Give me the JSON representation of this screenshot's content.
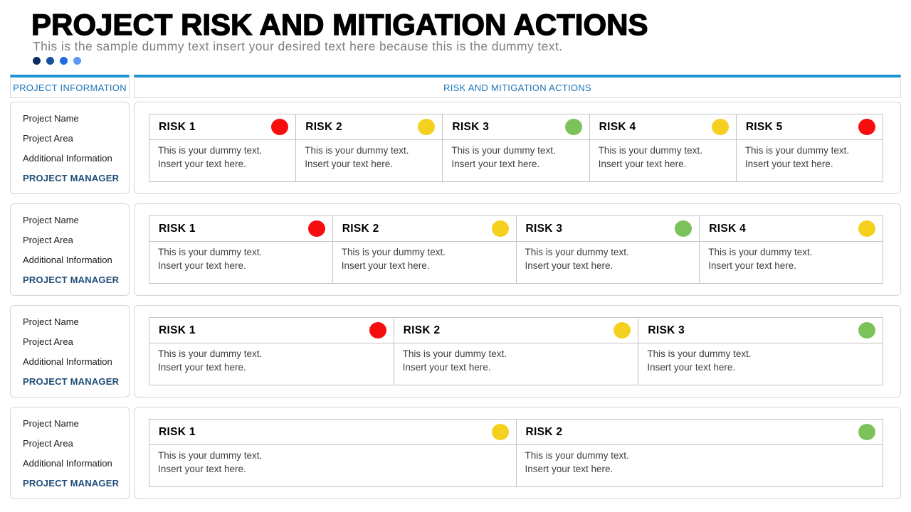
{
  "title": "PROJECT RISK AND MITIGATION ACTIONS",
  "subtitle": "This is the sample dummy text insert your desired text here because this is the dummy text.",
  "accent_dots": [
    "#0d2f5f",
    "#16539e",
    "#1e6ce0",
    "#5e97f0"
  ],
  "left_header": "PROJECT INFORMATION",
  "right_header": "RISK AND MITIGATION ACTIONS",
  "colors": {
    "header_accent": "#1f93d4",
    "header_text": "#1b75bc",
    "manager_text": "#1f4e79",
    "levels": {
      "red": "#f70d0d",
      "yellow": "#f5d01e",
      "green": "#7cc25a"
    }
  },
  "project_info": {
    "fields": [
      "Project Name",
      "Project Area",
      "Additional Information"
    ],
    "manager_label": "PROJECT MANAGER"
  },
  "card_text": {
    "line1": "This is your dummy text.",
    "line2": "Insert your text here."
  },
  "rows": [
    {
      "risks": [
        {
          "label": "RISK 1",
          "level": "red"
        },
        {
          "label": "RISK 2",
          "level": "yellow"
        },
        {
          "label": "RISK 3",
          "level": "green"
        },
        {
          "label": "RISK 4",
          "level": "yellow"
        },
        {
          "label": "RISK 5",
          "level": "red"
        }
      ]
    },
    {
      "risks": [
        {
          "label": "RISK 1",
          "level": "red"
        },
        {
          "label": "RISK 2",
          "level": "yellow"
        },
        {
          "label": "RISK 3",
          "level": "green"
        },
        {
          "label": "RISK 4",
          "level": "yellow"
        }
      ]
    },
    {
      "risks": [
        {
          "label": "RISK 1",
          "level": "red"
        },
        {
          "label": "RISK 2",
          "level": "yellow"
        },
        {
          "label": "RISK 3",
          "level": "green"
        }
      ]
    },
    {
      "risks": [
        {
          "label": "RISK 1",
          "level": "yellow"
        },
        {
          "label": "RISK 2",
          "level": "green"
        }
      ]
    }
  ]
}
